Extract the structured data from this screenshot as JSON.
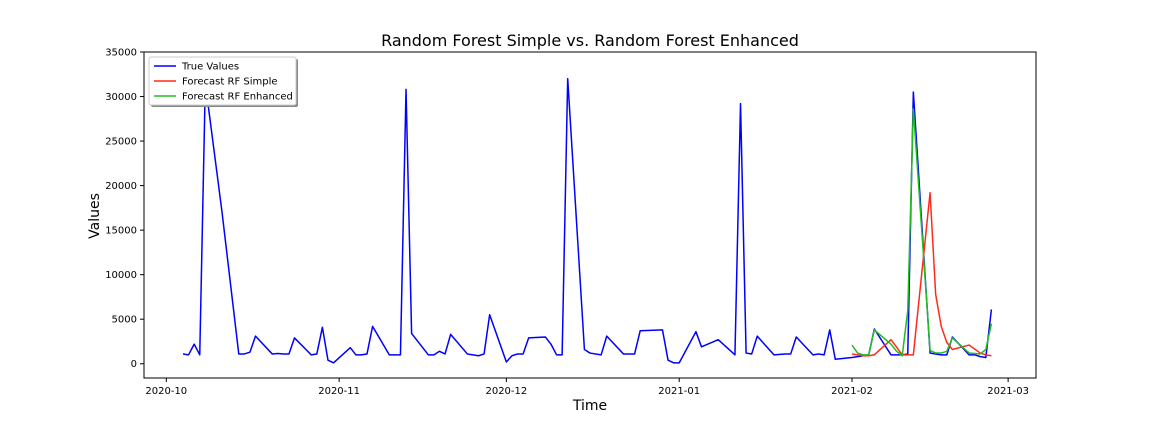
{
  "chart_data": {
    "type": "line",
    "title": "Random Forest Simple vs. Random Forest Enhanced",
    "xlabel": "Time",
    "ylabel": "Values",
    "x_type": "date",
    "xlim": [
      "2020-09-27",
      "2021-03-06"
    ],
    "ylim": [
      -1600,
      35000
    ],
    "x_ticks": [
      "2020-10-01",
      "2020-11-01",
      "2020-12-01",
      "2021-01-01",
      "2021-02-01",
      "2021-03-01"
    ],
    "x_tick_labels": [
      "2020-10",
      "2020-11",
      "2020-12",
      "2021-01",
      "2021-02",
      "2021-03"
    ],
    "y_ticks": [
      0,
      5000,
      10000,
      15000,
      20000,
      25000,
      30000,
      35000
    ],
    "y_tick_labels": [
      "0",
      "5000",
      "10000",
      "15000",
      "20000",
      "25000",
      "30000",
      "35000"
    ],
    "grid": false,
    "legend_position": "top-left",
    "series": [
      {
        "name": "True Values",
        "color": "#0000ff",
        "points": [
          [
            "2020-10-04",
            1100
          ],
          [
            "2020-10-05",
            1000
          ],
          [
            "2020-10-06",
            2200
          ],
          [
            "2020-10-07",
            1000
          ],
          [
            "2020-10-08",
            31500
          ],
          [
            "2020-10-11",
            17000
          ],
          [
            "2020-10-14",
            1100
          ],
          [
            "2020-10-15",
            1100
          ],
          [
            "2020-10-16",
            1300
          ],
          [
            "2020-10-17",
            3100
          ],
          [
            "2020-10-20",
            1100
          ],
          [
            "2020-10-21",
            1150
          ],
          [
            "2020-10-22",
            1100
          ],
          [
            "2020-10-23",
            1100
          ],
          [
            "2020-10-24",
            2900
          ],
          [
            "2020-10-27",
            1000
          ],
          [
            "2020-10-28",
            1100
          ],
          [
            "2020-10-29",
            4100
          ],
          [
            "2020-10-30",
            400
          ],
          [
            "2020-10-31",
            100
          ],
          [
            "2020-11-03",
            1800
          ],
          [
            "2020-11-04",
            1000
          ],
          [
            "2020-11-05",
            1000
          ],
          [
            "2020-11-06",
            1100
          ],
          [
            "2020-11-07",
            4200
          ],
          [
            "2020-11-10",
            1000
          ],
          [
            "2020-11-11",
            1000
          ],
          [
            "2020-11-12",
            1000
          ],
          [
            "2020-11-13",
            30800
          ],
          [
            "2020-11-14",
            3400
          ],
          [
            "2020-11-17",
            1000
          ],
          [
            "2020-11-18",
            1000
          ],
          [
            "2020-11-19",
            1400
          ],
          [
            "2020-11-20",
            1100
          ],
          [
            "2020-11-21",
            3300
          ],
          [
            "2020-11-24",
            1100
          ],
          [
            "2020-11-25",
            1000
          ],
          [
            "2020-11-26",
            900
          ],
          [
            "2020-11-27",
            1100
          ],
          [
            "2020-11-28",
            5500
          ],
          [
            "2020-12-01",
            200
          ],
          [
            "2020-12-02",
            900
          ],
          [
            "2020-12-03",
            1100
          ],
          [
            "2020-12-04",
            1100
          ],
          [
            "2020-12-05",
            2900
          ],
          [
            "2020-12-08",
            3000
          ],
          [
            "2020-12-09",
            2200
          ],
          [
            "2020-12-10",
            1000
          ],
          [
            "2020-12-11",
            1000
          ],
          [
            "2020-12-12",
            32000
          ],
          [
            "2020-12-15",
            1600
          ],
          [
            "2020-12-16",
            1200
          ],
          [
            "2020-12-18",
            1000
          ],
          [
            "2020-12-19",
            3100
          ],
          [
            "2020-12-22",
            1100
          ],
          [
            "2020-12-23",
            1100
          ],
          [
            "2020-12-24",
            1100
          ],
          [
            "2020-12-25",
            3700
          ],
          [
            "2020-12-29",
            3800
          ],
          [
            "2020-12-30",
            400
          ],
          [
            "2020-12-31",
            100
          ],
          [
            "2021-01-01",
            100
          ],
          [
            "2021-01-04",
            3600
          ],
          [
            "2021-01-05",
            1900
          ],
          [
            "2021-01-08",
            2700
          ],
          [
            "2021-01-11",
            1000
          ],
          [
            "2021-01-12",
            29200
          ],
          [
            "2021-01-13",
            1200
          ],
          [
            "2021-01-14",
            1100
          ],
          [
            "2021-01-15",
            3100
          ],
          [
            "2021-01-18",
            1000
          ],
          [
            "2021-01-20",
            1100
          ],
          [
            "2021-01-21",
            1100
          ],
          [
            "2021-01-22",
            3000
          ],
          [
            "2021-01-25",
            1000
          ],
          [
            "2021-01-26",
            1100
          ],
          [
            "2021-01-27",
            1000
          ],
          [
            "2021-01-28",
            3800
          ],
          [
            "2021-01-29",
            500
          ],
          [
            "2021-02-01",
            700
          ],
          [
            "2021-02-02",
            800
          ],
          [
            "2021-02-03",
            900
          ],
          [
            "2021-02-04",
            1000
          ],
          [
            "2021-02-05",
            3900
          ],
          [
            "2021-02-08",
            1000
          ],
          [
            "2021-02-09",
            1000
          ],
          [
            "2021-02-10",
            1000
          ],
          [
            "2021-02-11",
            1100
          ],
          [
            "2021-02-12",
            30500
          ],
          [
            "2021-02-15",
            1200
          ],
          [
            "2021-02-16",
            1100
          ],
          [
            "2021-02-17",
            1000
          ],
          [
            "2021-02-18",
            1000
          ],
          [
            "2021-02-19",
            3000
          ],
          [
            "2021-02-22",
            1000
          ],
          [
            "2021-02-23",
            1000
          ],
          [
            "2021-02-24",
            800
          ],
          [
            "2021-02-25",
            700
          ],
          [
            "2021-02-26",
            6100
          ]
        ]
      },
      {
        "name": "Forecast RF Simple",
        "color": "#ff2a1a",
        "points": [
          [
            "2021-02-01",
            1100
          ],
          [
            "2021-02-02",
            1000
          ],
          [
            "2021-02-03",
            900
          ],
          [
            "2021-02-04",
            900
          ],
          [
            "2021-02-05",
            1000
          ],
          [
            "2021-02-08",
            2700
          ],
          [
            "2021-02-10",
            1000
          ],
          [
            "2021-02-11",
            1000
          ],
          [
            "2021-02-12",
            1000
          ],
          [
            "2021-02-15",
            19200
          ],
          [
            "2021-02-16",
            7800
          ],
          [
            "2021-02-17",
            4200
          ],
          [
            "2021-02-18",
            2400
          ],
          [
            "2021-02-19",
            1600
          ],
          [
            "2021-02-22",
            2100
          ],
          [
            "2021-02-24",
            1200
          ],
          [
            "2021-02-25",
            1000
          ],
          [
            "2021-02-26",
            900
          ]
        ]
      },
      {
        "name": "Forecast RF Enhanced",
        "color": "#22bb22",
        "points": [
          [
            "2021-02-01",
            2100
          ],
          [
            "2021-02-02",
            1200
          ],
          [
            "2021-02-03",
            1000
          ],
          [
            "2021-02-04",
            1000
          ],
          [
            "2021-02-05",
            3800
          ],
          [
            "2021-02-08",
            2200
          ],
          [
            "2021-02-09",
            1400
          ],
          [
            "2021-02-10",
            900
          ],
          [
            "2021-02-11",
            6000
          ],
          [
            "2021-02-12",
            28600
          ],
          [
            "2021-02-15",
            1500
          ],
          [
            "2021-02-16",
            1200
          ],
          [
            "2021-02-17",
            1200
          ],
          [
            "2021-02-18",
            1400
          ],
          [
            "2021-02-19",
            2900
          ],
          [
            "2021-02-22",
            1200
          ],
          [
            "2021-02-24",
            1100
          ],
          [
            "2021-02-25",
            1600
          ],
          [
            "2021-02-26",
            4500
          ]
        ]
      }
    ]
  }
}
